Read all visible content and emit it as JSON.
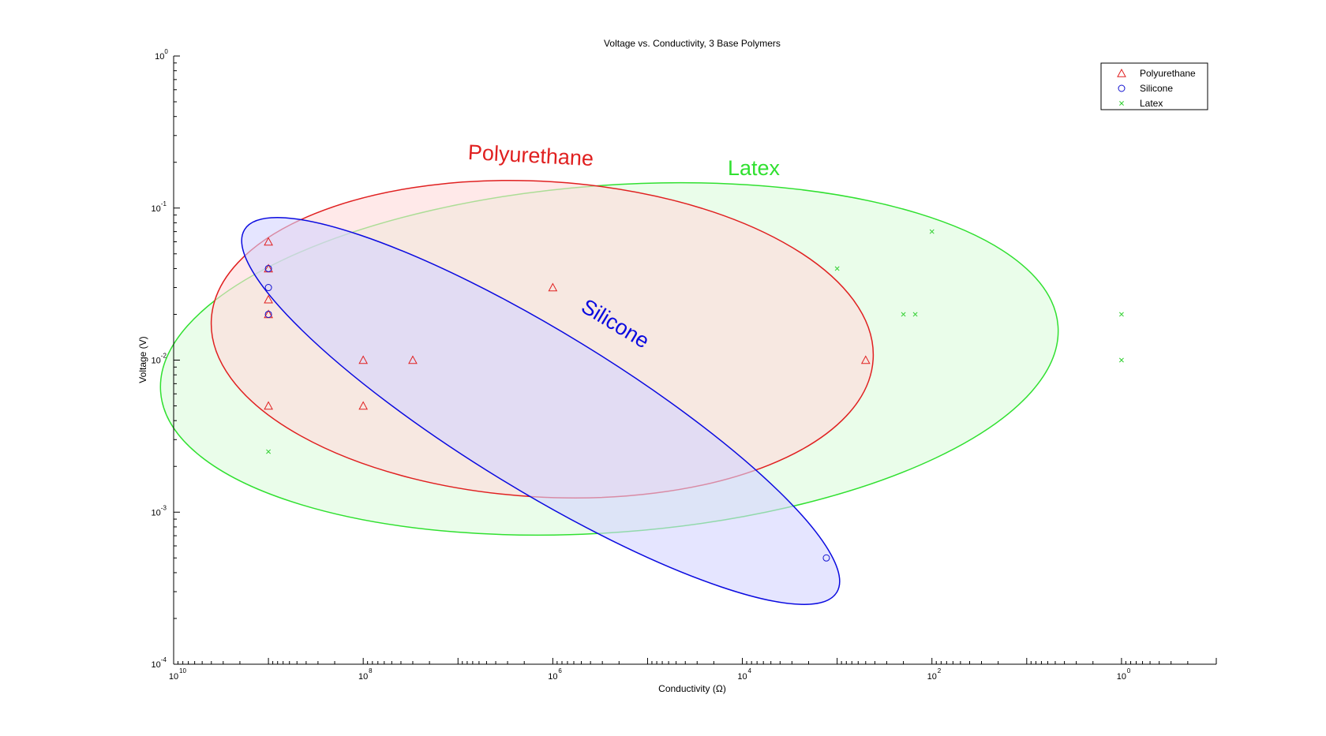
{
  "chart_data": {
    "type": "scatter",
    "title": "Voltage vs. Conductivity, 3 Base Polymers",
    "xlabel": "Conductivity (Ω)",
    "ylabel": "Voltage (V)",
    "x_scale": "log",
    "y_scale": "log",
    "x_reversed": true,
    "xlim": [
      10000000000.0,
      0.1
    ],
    "ylim": [
      0.0001,
      1
    ],
    "x_ticks": [
      {
        "value": 10000000000.0,
        "base": "10",
        "exp": "10"
      },
      {
        "value": 100000000.0,
        "base": "10",
        "exp": "8"
      },
      {
        "value": 1000000.0,
        "base": "10",
        "exp": "6"
      },
      {
        "value": 10000.0,
        "base": "10",
        "exp": "4"
      },
      {
        "value": 100.0,
        "base": "10",
        "exp": "2"
      },
      {
        "value": 1,
        "base": "10",
        "exp": "0"
      }
    ],
    "y_ticks": [
      {
        "value": 1,
        "base": "10",
        "exp": "0"
      },
      {
        "value": 0.1,
        "base": "10",
        "exp": "-1"
      },
      {
        "value": 0.01,
        "base": "10",
        "exp": "-2"
      },
      {
        "value": 0.001,
        "base": "10",
        "exp": "-3"
      },
      {
        "value": 0.0001,
        "base": "10",
        "exp": "-4"
      }
    ],
    "grid": false,
    "legend_position": "top-right",
    "series": [
      {
        "name": "Polyurethane",
        "marker": "triangle",
        "color": "#e02020",
        "points": [
          {
            "x": 1000000000.0,
            "y": 0.06
          },
          {
            "x": 1000000000.0,
            "y": 0.04
          },
          {
            "x": 1000000000.0,
            "y": 0.025
          },
          {
            "x": 1000000000.0,
            "y": 0.02
          },
          {
            "x": 1000000000.0,
            "y": 0.005
          },
          {
            "x": 100000000.0,
            "y": 0.01
          },
          {
            "x": 100000000.0,
            "y": 0.005
          },
          {
            "x": 30000000.0,
            "y": 0.01
          },
          {
            "x": 1000000.0,
            "y": 0.03
          },
          {
            "x": 500,
            "y": 0.01
          }
        ]
      },
      {
        "name": "Silicone",
        "marker": "circle",
        "color": "#1010d0",
        "points": [
          {
            "x": 1000000000.0,
            "y": 0.04
          },
          {
            "x": 1000000000.0,
            "y": 0.03
          },
          {
            "x": 1000000000.0,
            "y": 0.02
          },
          {
            "x": 1300,
            "y": 0.0005
          }
        ]
      },
      {
        "name": "Latex",
        "marker": "x",
        "color": "#30d030",
        "points": [
          {
            "x": 1000000000.0,
            "y": 0.0025
          },
          {
            "x": 1000,
            "y": 0.04
          },
          {
            "x": 200,
            "y": 0.02
          },
          {
            "x": 150,
            "y": 0.02
          },
          {
            "x": 100,
            "y": 0.07
          },
          {
            "x": 1,
            "y": 0.02
          },
          {
            "x": 1,
            "y": 0.01
          }
        ]
      }
    ],
    "regions": [
      {
        "name": "Polyurethane",
        "label": "Polyurethane",
        "color": "#e02020",
        "fill": "#ffdada"
      },
      {
        "name": "Latex",
        "label": "Latex",
        "color": "#30e030",
        "fill": "#dcfcdc"
      },
      {
        "name": "Silicone",
        "label": "Silicone",
        "color": "#0a0ae0",
        "fill": "#d4d4ff"
      }
    ]
  }
}
